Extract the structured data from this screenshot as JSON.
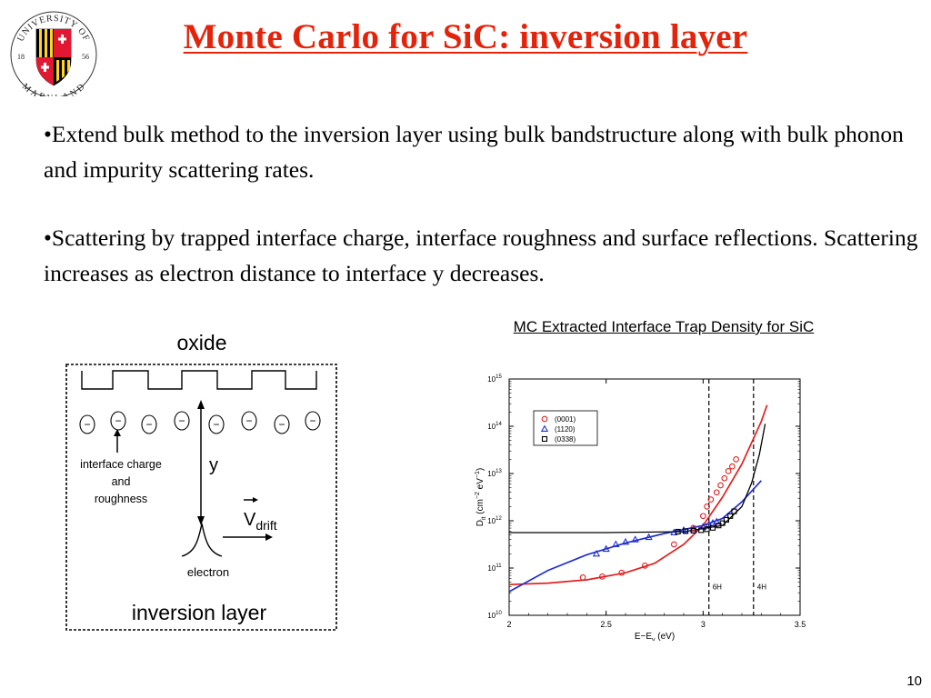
{
  "title": "Monte Carlo for SiC:  inversion layer",
  "bullets": [
    "•Extend bulk method to the inversion layer using bulk bandstructure along with bulk phonon and impurity scattering rates.",
    "•Scattering by trapped interface charge, interface roughness and surface reflections.  Scattering increases as electron distance to interface y decreases."
  ],
  "logo": {
    "top_text": "UNIVERSITY OF",
    "bottom_text": "MARYLAND",
    "year_left": "18",
    "year_right": "56"
  },
  "diagram": {
    "oxide_label": "oxide",
    "charge_symbol": "−",
    "interface_label_lines": [
      "interface charge",
      "and",
      "roughness"
    ],
    "y_label": "y",
    "vdrift_main": "V",
    "vdrift_sub": "drift",
    "electron_label": "electron",
    "inversion_label": "inversion layer"
  },
  "slide_number": "10",
  "chart_data": {
    "type": "scatter",
    "title": "MC Extracted Interface Trap Density for SiC",
    "xlabel_main": "E−E",
    "xlabel_sub": "v",
    "xlabel_unit": " (eV)",
    "ylabel_main": "D",
    "ylabel_sub": "it",
    "ylabel_unit": " (cm",
    "ylabel_exp1": "−2",
    "ylabel_mid": " eV",
    "ylabel_exp2": "−1",
    "ylabel_end": ")",
    "xlim": [
      2,
      3.5
    ],
    "ylim_log10": [
      10,
      15
    ],
    "x_ticks": [
      {
        "v": 2,
        "label": "2"
      },
      {
        "v": 2.5,
        "label": "2.5"
      },
      {
        "v": 3,
        "label": "3"
      },
      {
        "v": 3.5,
        "label": "3.5"
      }
    ],
    "y_ticks": [
      {
        "v": 10,
        "base": "10",
        "exp": "10"
      },
      {
        "v": 11,
        "base": "10",
        "exp": "11"
      },
      {
        "v": 12,
        "base": "10",
        "exp": "12"
      },
      {
        "v": 13,
        "base": "10",
        "exp": "13"
      },
      {
        "v": 14,
        "base": "10",
        "exp": "14"
      },
      {
        "v": 15,
        "base": "10",
        "exp": "15"
      }
    ],
    "vlines": [
      {
        "x": 3.03,
        "label": "6H"
      },
      {
        "x": 3.26,
        "label": "4H"
      }
    ],
    "legend_position": "top-left",
    "series": [
      {
        "name": "(0001)",
        "marker": "circle",
        "color": "#e02020",
        "points": [
          [
            2.38,
            10.8
          ],
          [
            2.48,
            10.82
          ],
          [
            2.58,
            10.9
          ],
          [
            2.7,
            11.05
          ],
          [
            2.85,
            11.5
          ],
          [
            2.95,
            11.85
          ],
          [
            3.0,
            12.1
          ],
          [
            3.02,
            12.3
          ],
          [
            3.04,
            12.45
          ],
          [
            3.07,
            12.6
          ],
          [
            3.09,
            12.75
          ],
          [
            3.11,
            12.9
          ],
          [
            3.13,
            13.05
          ],
          [
            3.15,
            13.15
          ],
          [
            3.17,
            13.3
          ]
        ],
        "fit": [
          [
            2.0,
            10.65
          ],
          [
            2.2,
            10.68
          ],
          [
            2.4,
            10.75
          ],
          [
            2.6,
            10.9
          ],
          [
            2.75,
            11.1
          ],
          [
            2.9,
            11.5
          ],
          [
            3.0,
            11.9
          ],
          [
            3.1,
            12.5
          ],
          [
            3.2,
            13.2
          ],
          [
            3.3,
            14.1
          ],
          [
            3.33,
            14.45
          ]
        ]
      },
      {
        "name": "(1120)",
        "marker": "triangle",
        "color": "#2030d0",
        "points": [
          [
            2.45,
            11.3
          ],
          [
            2.5,
            11.4
          ],
          [
            2.55,
            11.5
          ],
          [
            2.6,
            11.55
          ],
          [
            2.65,
            11.6
          ],
          [
            2.72,
            11.65
          ],
          [
            2.85,
            11.75
          ],
          [
            2.9,
            11.8
          ],
          [
            2.95,
            11.82
          ],
          [
            3.0,
            11.87
          ],
          [
            3.03,
            11.92
          ],
          [
            3.05,
            11.95
          ],
          [
            3.07,
            11.98
          ]
        ],
        "fit": [
          [
            2.0,
            10.5
          ],
          [
            2.2,
            10.95
          ],
          [
            2.4,
            11.28
          ],
          [
            2.6,
            11.53
          ],
          [
            2.8,
            11.73
          ],
          [
            3.0,
            11.9
          ],
          [
            3.1,
            12.05
          ],
          [
            3.2,
            12.4
          ],
          [
            3.3,
            12.85
          ]
        ]
      },
      {
        "name": "(0338)",
        "marker": "square",
        "color": "#000000",
        "points": [
          [
            2.87,
            11.77
          ],
          [
            2.91,
            11.78
          ],
          [
            2.95,
            11.79
          ],
          [
            2.99,
            11.8
          ],
          [
            3.02,
            11.82
          ],
          [
            3.05,
            11.85
          ],
          [
            3.08,
            11.9
          ],
          [
            3.1,
            11.95
          ],
          [
            3.12,
            12.02
          ],
          [
            3.14,
            12.1
          ],
          [
            3.16,
            12.2
          ]
        ],
        "fit": [
          [
            2.0,
            11.75
          ],
          [
            2.5,
            11.75
          ],
          [
            2.9,
            11.77
          ],
          [
            3.1,
            11.9
          ],
          [
            3.2,
            12.3
          ],
          [
            3.25,
            12.8
          ],
          [
            3.29,
            13.4
          ],
          [
            3.32,
            14.05
          ]
        ]
      }
    ]
  }
}
